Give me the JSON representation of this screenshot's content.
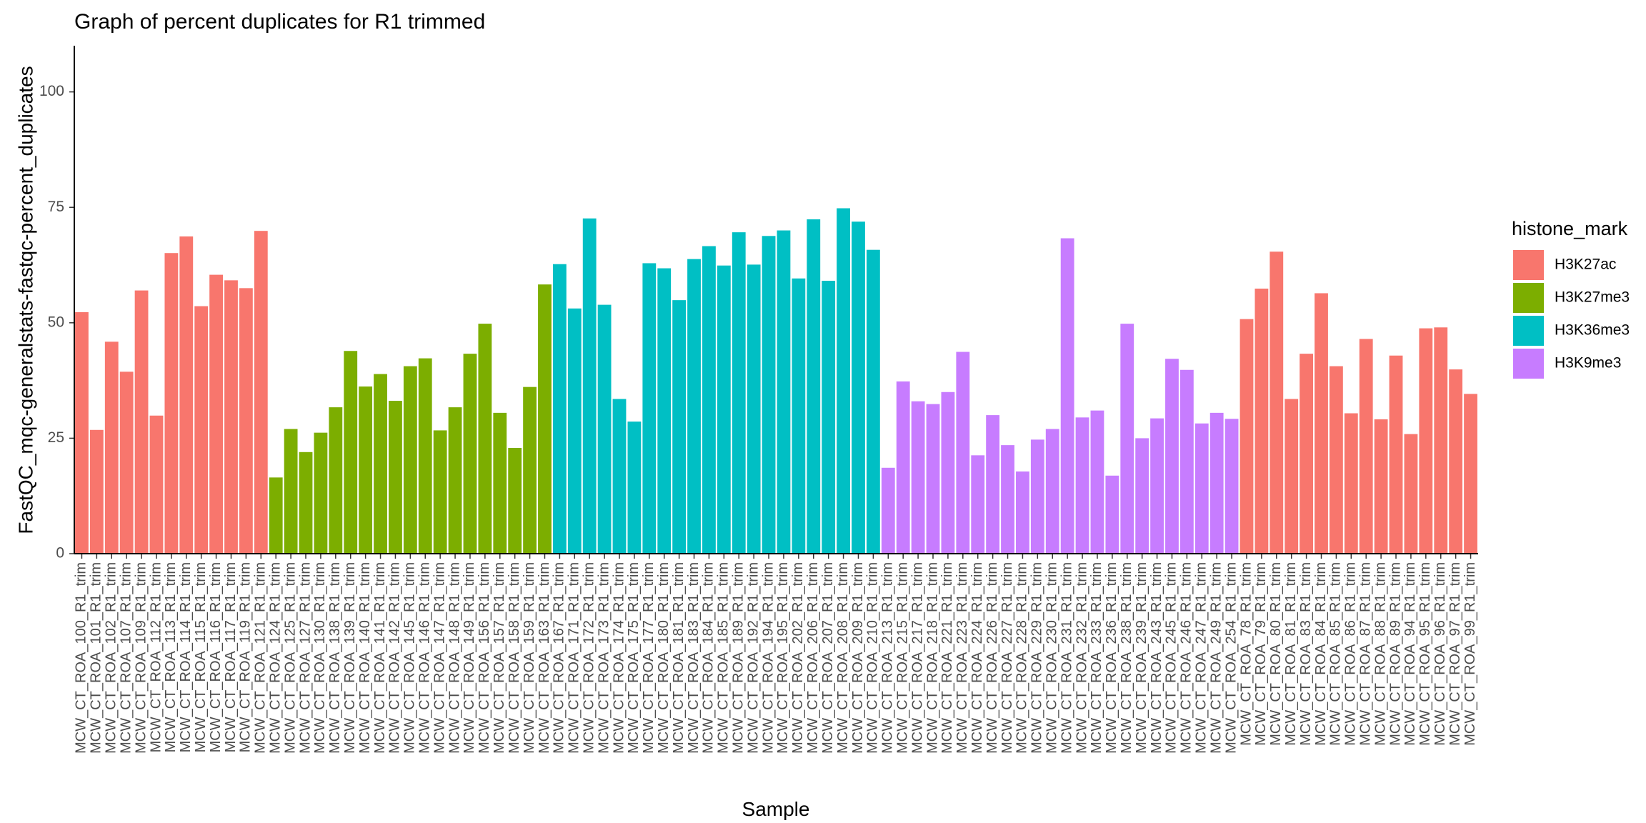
{
  "chart_data": {
    "type": "bar",
    "title": "Graph of percent duplicates for R1 trimmed",
    "x_label": "Sample",
    "y_label": "FastQC_mqc-generalstats-fastqc-percent_duplicates",
    "legend_title": "histone_mark",
    "legend_position": "right",
    "ylim": [
      0,
      110
    ],
    "yticks": [
      0,
      25,
      50,
      75,
      100
    ],
    "grid": false,
    "categories": [
      "MCW_CT_ROA_100_R1_trim",
      "MCW_CT_ROA_101_R1_trim",
      "MCW_CT_ROA_102_R1_trim",
      "MCW_CT_ROA_107_R1_trim",
      "MCW_CT_ROA_109_R1_trim",
      "MCW_CT_ROA_112_R1_trim",
      "MCW_CT_ROA_113_R1_trim",
      "MCW_CT_ROA_114_R1_trim",
      "MCW_CT_ROA_115_R1_trim",
      "MCW_CT_ROA_116_R1_trim",
      "MCW_CT_ROA_117_R1_trim",
      "MCW_CT_ROA_119_R1_trim",
      "MCW_CT_ROA_121_R1_trim",
      "MCW_CT_ROA_124_R1_trim",
      "MCW_CT_ROA_125_R1_trim",
      "MCW_CT_ROA_127_R1_trim",
      "MCW_CT_ROA_130_R1_trim",
      "MCW_CT_ROA_138_R1_trim",
      "MCW_CT_ROA_139_R1_trim",
      "MCW_CT_ROA_140_R1_trim",
      "MCW_CT_ROA_141_R1_trim",
      "MCW_CT_ROA_142_R1_trim",
      "MCW_CT_ROA_145_R1_trim",
      "MCW_CT_ROA_146_R1_trim",
      "MCW_CT_ROA_147_R1_trim",
      "MCW_CT_ROA_148_R1_trim",
      "MCW_CT_ROA_149_R1_trim",
      "MCW_CT_ROA_156_R1_trim",
      "MCW_CT_ROA_157_R1_trim",
      "MCW_CT_ROA_158_R1_trim",
      "MCW_CT_ROA_159_R1_trim",
      "MCW_CT_ROA_163_R1_trim",
      "MCW_CT_ROA_167_R1_trim",
      "MCW_CT_ROA_171_R1_trim",
      "MCW_CT_ROA_172_R1_trim",
      "MCW_CT_ROA_173_R1_trim",
      "MCW_CT_ROA_174_R1_trim",
      "MCW_CT_ROA_175_R1_trim",
      "MCW_CT_ROA_177_R1_trim",
      "MCW_CT_ROA_180_R1_trim",
      "MCW_CT_ROA_181_R1_trim",
      "MCW_CT_ROA_183_R1_trim",
      "MCW_CT_ROA_184_R1_trim",
      "MCW_CT_ROA_185_R1_trim",
      "MCW_CT_ROA_189_R1_trim",
      "MCW_CT_ROA_192_R1_trim",
      "MCW_CT_ROA_194_R1_trim",
      "MCW_CT_ROA_195_R1_trim",
      "MCW_CT_ROA_202_R1_trim",
      "MCW_CT_ROA_206_R1_trim",
      "MCW_CT_ROA_207_R1_trim",
      "MCW_CT_ROA_208_R1_trim",
      "MCW_CT_ROA_209_R1_trim",
      "MCW_CT_ROA_210_R1_trim",
      "MCW_CT_ROA_213_R1_trim",
      "MCW_CT_ROA_215_R1_trim",
      "MCW_CT_ROA_217_R1_trim",
      "MCW_CT_ROA_218_R1_trim",
      "MCW_CT_ROA_221_R1_trim",
      "MCW_CT_ROA_223_R1_trim",
      "MCW_CT_ROA_224_R1_trim",
      "MCW_CT_ROA_226_R1_trim",
      "MCW_CT_ROA_227_R1_trim",
      "MCW_CT_ROA_228_R1_trim",
      "MCW_CT_ROA_229_R1_trim",
      "MCW_CT_ROA_230_R1_trim",
      "MCW_CT_ROA_231_R1_trim",
      "MCW_CT_ROA_232_R1_trim",
      "MCW_CT_ROA_233_R1_trim",
      "MCW_CT_ROA_236_R1_trim",
      "MCW_CT_ROA_238_R1_trim",
      "MCW_CT_ROA_239_R1_trim",
      "MCW_CT_ROA_243_R1_trim",
      "MCW_CT_ROA_245_R1_trim",
      "MCW_CT_ROA_246_R1_trim",
      "MCW_CT_ROA_247_R1_trim",
      "MCW_CT_ROA_249_R1_trim",
      "MCW_CT_ROA_254_R1_trim",
      "MCW_CT_ROA_78_R1_trim",
      "MCW_CT_ROA_79_R1_trim",
      "MCW_CT_ROA_80_R1_trim",
      "MCW_CT_ROA_81_R1_trim",
      "MCW_CT_ROA_83_R1_trim",
      "MCW_CT_ROA_84_R1_trim",
      "MCW_CT_ROA_85_R1_trim",
      "MCW_CT_ROA_86_R1_trim",
      "MCW_CT_ROA_87_R1_trim",
      "MCW_CT_ROA_88_R1_trim",
      "MCW_CT_ROA_89_R1_trim",
      "MCW_CT_ROA_94_R1_trim",
      "MCW_CT_ROA_95_R1_trim",
      "MCW_CT_ROA_96_R1_trim",
      "MCW_CT_ROA_97_R1_trim",
      "MCW_CT_ROA_99_R1_trim"
    ],
    "series": [
      {
        "name": "H3K27ac",
        "color": "#f8766d",
        "values": [
          52.3,
          26.8,
          45.9,
          39.4,
          57,
          29.9,
          65.1,
          68.7,
          53.6,
          60.4,
          59.2,
          57.5,
          69.9,
          null,
          null,
          null,
          null,
          null,
          null,
          null,
          null,
          null,
          null,
          null,
          null,
          null,
          null,
          null,
          null,
          null,
          null,
          null,
          null,
          null,
          null,
          null,
          null,
          null,
          null,
          null,
          null,
          null,
          null,
          null,
          null,
          null,
          null,
          null,
          null,
          null,
          null,
          null,
          null,
          null,
          null,
          null,
          null,
          null,
          null,
          null,
          null,
          null,
          null,
          null,
          null,
          null,
          null,
          null,
          null,
          null,
          null,
          null,
          null,
          null,
          null,
          null,
          null,
          null,
          50.8,
          57.4,
          65.4,
          33.5,
          43.3,
          56.4,
          40.6,
          30.4,
          46.5,
          29.1,
          42.9,
          25.9,
          48.8,
          49,
          39.9,
          34.6
        ]
      },
      {
        "name": "H3K27me3",
        "color": "#7cae00",
        "values": [
          null,
          null,
          null,
          null,
          null,
          null,
          null,
          null,
          null,
          null,
          null,
          null,
          null,
          16.5,
          27,
          22,
          26.2,
          31.7,
          43.9,
          36.2,
          38.9,
          33.1,
          40.6,
          42.3,
          26.7,
          31.7,
          43.3,
          49.8,
          30.5,
          22.9,
          36.1,
          58.3,
          null,
          null,
          null,
          null,
          null,
          null,
          null,
          null,
          null,
          null,
          null,
          null,
          null,
          null,
          null,
          null,
          null,
          null,
          null,
          null,
          null,
          null,
          null,
          null,
          null,
          null,
          null,
          null,
          null,
          null,
          null,
          null,
          null,
          null,
          null,
          null,
          null,
          null,
          null,
          null,
          null,
          null,
          null,
          null,
          null,
          null,
          null,
          null,
          null,
          null,
          null,
          null,
          null,
          null,
          null,
          null,
          null,
          null,
          null,
          null,
          null,
          null
        ]
      },
      {
        "name": "H3K36me3",
        "color": "#00bfc4",
        "values": [
          null,
          null,
          null,
          null,
          null,
          null,
          null,
          null,
          null,
          null,
          null,
          null,
          null,
          null,
          null,
          null,
          null,
          null,
          null,
          null,
          null,
          null,
          null,
          null,
          null,
          null,
          null,
          null,
          null,
          null,
          null,
          null,
          62.7,
          53.1,
          72.6,
          53.9,
          33.5,
          28.6,
          62.9,
          61.8,
          54.9,
          63.8,
          66.6,
          62.4,
          69.6,
          62.6,
          68.8,
          70,
          59.6,
          72.4,
          59.1,
          74.8,
          71.9,
          65.8,
          null,
          null,
          null,
          null,
          null,
          null,
          null,
          null,
          null,
          null,
          null,
          null,
          null,
          null,
          null,
          null,
          null,
          null,
          null,
          null,
          null,
          null,
          null,
          null,
          null,
          null,
          null,
          null,
          null,
          null,
          null,
          null,
          null,
          null,
          null,
          null,
          null,
          null,
          null,
          null
        ]
      },
      {
        "name": "H3K9me3",
        "color": "#c77cff",
        "values": [
          null,
          null,
          null,
          null,
          null,
          null,
          null,
          null,
          null,
          null,
          null,
          null,
          null,
          null,
          null,
          null,
          null,
          null,
          null,
          null,
          null,
          null,
          null,
          null,
          null,
          null,
          null,
          null,
          null,
          null,
          null,
          null,
          null,
          null,
          null,
          null,
          null,
          null,
          null,
          null,
          null,
          null,
          null,
          null,
          null,
          null,
          null,
          null,
          null,
          null,
          null,
          null,
          null,
          null,
          18.6,
          37.3,
          33,
          32.4,
          35,
          43.7,
          21.3,
          30,
          23.5,
          17.8,
          24.7,
          27,
          68.3,
          29.5,
          31,
          16.9,
          49.8,
          25,
          29.3,
          42.2,
          39.8,
          28.2,
          30.5,
          29.2,
          null,
          null,
          null,
          null,
          null,
          null,
          null,
          null,
          null,
          null,
          null,
          null,
          null,
          null,
          null,
          null
        ]
      }
    ]
  }
}
